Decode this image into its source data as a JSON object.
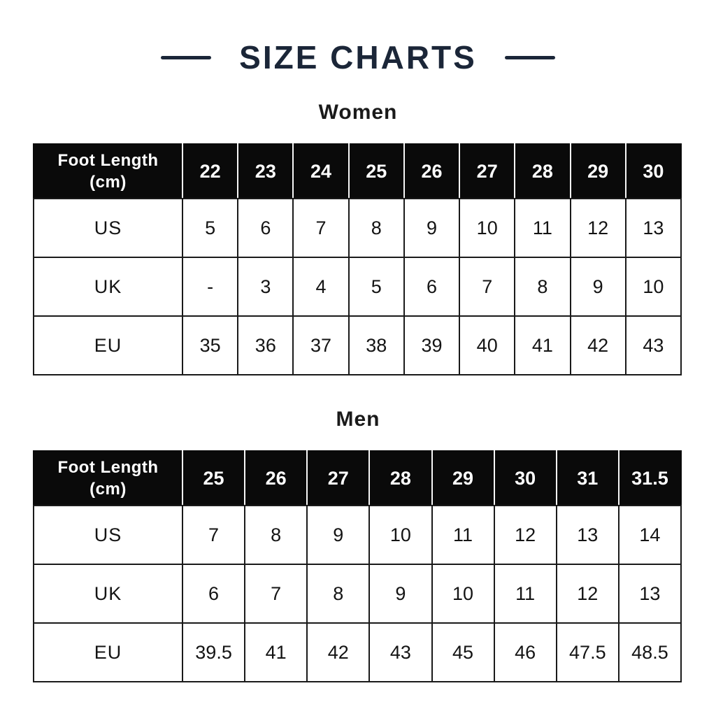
{
  "title": {
    "text": "SIZE CHARTS"
  },
  "colors": {
    "accent_navy": "#1b2638",
    "header_background": "#0a0a0a",
    "header_text": "#ffffff",
    "table_border": "#1a1a1a",
    "body_text": "#141414",
    "page_background": "#ffffff"
  },
  "chart_data": [
    {
      "type": "table",
      "name": "women",
      "subtitle": "Women",
      "corner_label": "Foot Length\n(cm)",
      "columns": [
        "22",
        "23",
        "24",
        "25",
        "26",
        "27",
        "28",
        "29",
        "30"
      ],
      "rows": [
        {
          "label": "US",
          "values": [
            "5",
            "6",
            "7",
            "8",
            "9",
            "10",
            "11",
            "12",
            "13"
          ]
        },
        {
          "label": "UK",
          "values": [
            "-",
            "3",
            "4",
            "5",
            "6",
            "7",
            "8",
            "9",
            "10"
          ]
        },
        {
          "label": "EU",
          "values": [
            "35",
            "36",
            "37",
            "38",
            "39",
            "40",
            "41",
            "42",
            "43"
          ]
        }
      ]
    },
    {
      "type": "table",
      "name": "men",
      "subtitle": "Men",
      "corner_label": "Foot Length\n(cm)",
      "columns": [
        "25",
        "26",
        "27",
        "28",
        "29",
        "30",
        "31",
        "31.5"
      ],
      "rows": [
        {
          "label": "US",
          "values": [
            "7",
            "8",
            "9",
            "10",
            "11",
            "12",
            "13",
            "14"
          ]
        },
        {
          "label": "UK",
          "values": [
            "6",
            "7",
            "8",
            "9",
            "10",
            "11",
            "12",
            "13"
          ]
        },
        {
          "label": "EU",
          "values": [
            "39.5",
            "41",
            "42",
            "43",
            "45",
            "46",
            "47.5",
            "48.5"
          ]
        }
      ]
    }
  ]
}
